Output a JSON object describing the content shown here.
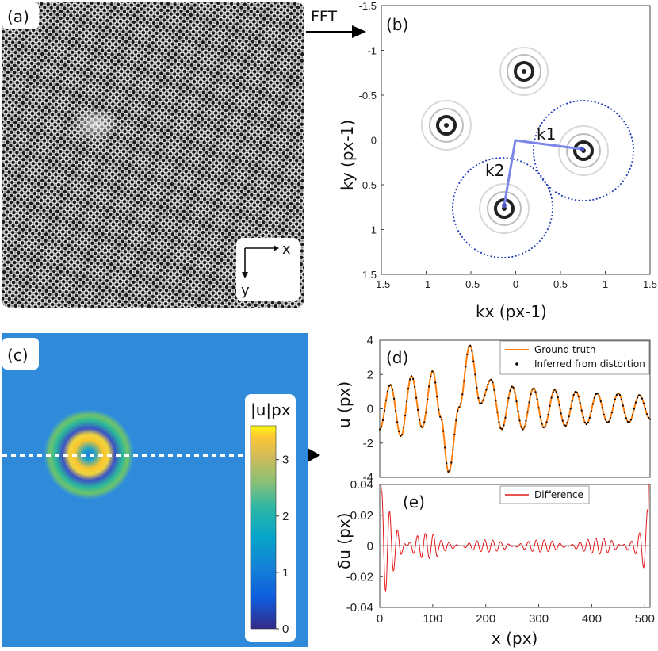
{
  "panel_labels": {
    "a": "(a)",
    "b": "(b)",
    "c": "(c)",
    "d": "(d)",
    "e": "(e)"
  },
  "arrow_label": "FFT",
  "axes_a": {
    "x": "x",
    "y": "y"
  },
  "panel_b": {
    "xlabel": "kx (px-1)",
    "ylabel": "ky (px-1)",
    "xticks": [
      "-1.5",
      "-1",
      "-0.5",
      "0",
      "0.5",
      "1",
      "1.5"
    ],
    "yticks": [
      "-1.5",
      "-1",
      "-0.5",
      "0",
      "0.5",
      "1",
      "1.5"
    ],
    "k1": "k1",
    "k2": "k2"
  },
  "panel_c": {
    "colorbar_title": "|u|px",
    "colorbar_ticks": [
      "0",
      "1",
      "2",
      "3"
    ]
  },
  "chart_data": [
    {
      "type": "line",
      "panel": "d",
      "ylabel": "u (px)",
      "xlim": [
        0,
        510
      ],
      "ylim": [
        -4,
        4
      ],
      "yticks": [
        "4",
        "2",
        "0",
        "-2",
        "-4"
      ],
      "series": [
        {
          "name": "Ground truth",
          "color": "#ff7f0e"
        },
        {
          "name": "Inferred from distortion",
          "color": "#000000"
        }
      ],
      "x": [
        0,
        20,
        40,
        60,
        80,
        100,
        115,
        130,
        150,
        170,
        190,
        210,
        230,
        250,
        270,
        290,
        310,
        330,
        350,
        370,
        390,
        410,
        430,
        450,
        470,
        490,
        510
      ],
      "values": [
        -1.2,
        1.4,
        -1.6,
        1.9,
        -1.1,
        2.2,
        -0.5,
        -3.7,
        0.1,
        3.7,
        0.3,
        1.7,
        -1.2,
        1.3,
        -1.2,
        1.2,
        -1.1,
        1.1,
        -1.0,
        1.0,
        -0.9,
        0.9,
        -0.8,
        0.9,
        -0.8,
        0.8,
        -0.6
      ]
    },
    {
      "type": "line",
      "panel": "e",
      "ylabel": "δu (px)",
      "xlabel": "x (px)",
      "xlim": [
        0,
        510
      ],
      "ylim": [
        -0.04,
        0.04
      ],
      "xticks": [
        "0",
        "100",
        "200",
        "300",
        "400",
        "500"
      ],
      "yticks": [
        "0.04",
        "0.02",
        "0",
        "-0.02",
        "-0.04"
      ],
      "series": [
        {
          "name": "Difference",
          "color": "#e31a1c"
        }
      ]
    }
  ]
}
